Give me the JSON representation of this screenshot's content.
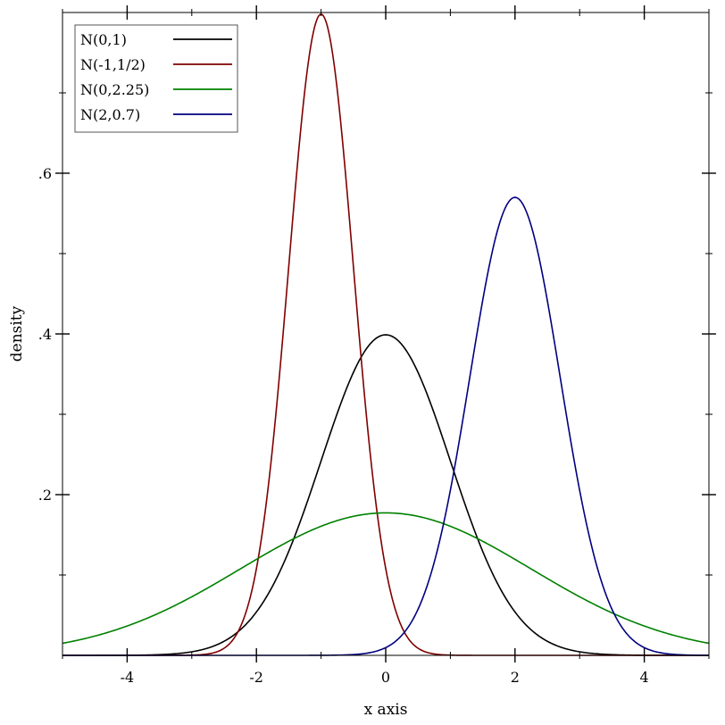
{
  "chart_data": {
    "type": "line",
    "xlabel": "x axis",
    "ylabel": "density",
    "xlim": [
      -5,
      5
    ],
    "ylim": [
      0,
      0.8
    ],
    "grid": false,
    "legend_position": "top-left",
    "x_ticks": [
      {
        "value": -4,
        "label": "-4"
      },
      {
        "value": -2,
        "label": "-2"
      },
      {
        "value": 0,
        "label": "0"
      },
      {
        "value": 2,
        "label": "2"
      },
      {
        "value": 4,
        "label": "4"
      }
    ],
    "x_minor_ticks": [
      -5,
      -3,
      -1,
      1,
      3,
      5
    ],
    "y_ticks": [
      {
        "value": 0.2,
        "label": ".2"
      },
      {
        "value": 0.4,
        "label": ".4"
      },
      {
        "value": 0.6,
        "label": ".6"
      }
    ],
    "y_minor_ticks": [
      0.1,
      0.3,
      0.5,
      0.7
    ],
    "series": [
      {
        "name": "N(0,1)",
        "mean": 0,
        "sd": 1,
        "color": "#000000",
        "peak_y": 0.399
      },
      {
        "name": "N(-1,1/2)",
        "mean": -1,
        "sd": 0.5,
        "color": "#7f0000",
        "peak_y": 0.798
      },
      {
        "name": "N(0,2.25)",
        "mean": 0,
        "sd": 2.25,
        "color": "#008000",
        "peak_y": 0.177
      },
      {
        "name": "N(2,0.7)",
        "mean": 2,
        "sd": 0.7,
        "color": "#00007f",
        "peak_y": 0.57
      }
    ]
  }
}
